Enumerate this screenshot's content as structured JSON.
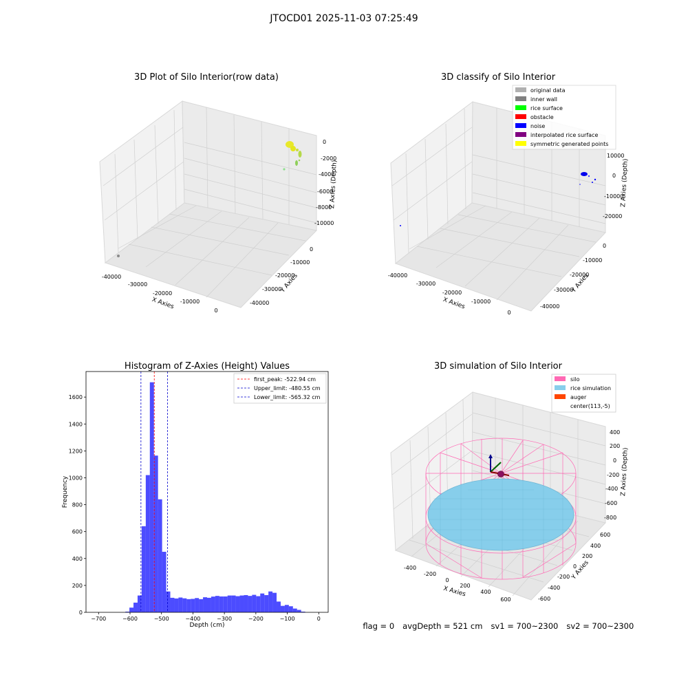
{
  "suptitle": "JTOCD01 2025-11-03 07:25:49",
  "panels": {
    "raw": {
      "title": "3D Plot of Silo Interior(row data)",
      "xlabel": "X Axies",
      "ylabel": "Y Axies",
      "zlabel": "Z Axies (Depth)",
      "xticks": [
        "-40000",
        "-30000",
        "-20000",
        "-10000",
        "0"
      ],
      "yticks": [
        "0",
        "-10000",
        "-20000",
        "-30000",
        "-40000"
      ],
      "zticks": [
        "0",
        "-2000",
        "-4000",
        "-6000",
        "-8000",
        "-10000"
      ]
    },
    "classify": {
      "title": "3D classify of Silo Interior",
      "xlabel": "X Axies",
      "ylabel": "Y Axies",
      "zlabel": "Z Axies (Depth)",
      "xticks": [
        "-40000",
        "-30000",
        "-20000",
        "-10000",
        "0"
      ],
      "yticks": [
        "0",
        "-10000",
        "-20000",
        "-30000",
        "-40000"
      ],
      "zticks": [
        "10000",
        "0",
        "-10000",
        "-20000"
      ],
      "legend": [
        {
          "label": "original data",
          "color": "#b0b0b0"
        },
        {
          "label": "inner wall",
          "color": "#808080"
        },
        {
          "label": "rice surface",
          "color": "#00ff00"
        },
        {
          "label": "obstacle",
          "color": "#ff0000"
        },
        {
          "label": "noise",
          "color": "#0000ff"
        },
        {
          "label": "interpolated rice surface",
          "color": "#800080"
        },
        {
          "label": "symmetric generated points",
          "color": "#ffff00"
        }
      ]
    },
    "simulation": {
      "title": "3D simulation of Silo Interior",
      "xlabel": "X Axies",
      "ylabel": "Y Axies",
      "zlabel": "Z Axies (Depth)",
      "xticks": [
        "-400",
        "-200",
        "0",
        "200",
        "400",
        "600"
      ],
      "yticks": [
        "600",
        "400",
        "200",
        "0",
        "-200",
        "-400",
        "-600"
      ],
      "zticks": [
        "400",
        "200",
        "0",
        "-200",
        "-400",
        "-600",
        "-800"
      ],
      "legend": [
        {
          "label": "silo",
          "color": "#ff69b4"
        },
        {
          "label": "rice simulation",
          "color": "#87ceeb"
        },
        {
          "label": "auger",
          "color": "#ff4500"
        },
        {
          "label": "center(113,-5)",
          "color": "#ffffff"
        }
      ]
    }
  },
  "chart_data": {
    "type": "bar",
    "title": "Histogram of Z-Axies (Height) Values",
    "xlabel": "Depth (cm)",
    "ylabel": "Frequency",
    "xlim": [
      -740,
      30
    ],
    "ylim": [
      0,
      1790
    ],
    "xticks": [
      -700,
      -600,
      -500,
      -400,
      -300,
      -200,
      -100,
      0
    ],
    "yticks": [
      0,
      200,
      400,
      600,
      800,
      1000,
      1200,
      1400,
      1600
    ],
    "bar_color": "#0000ff",
    "bar_alpha": 0.7,
    "bin_edges": [
      -615,
      -602,
      -589,
      -576,
      -563,
      -550,
      -537,
      -524,
      -511,
      -498,
      -485,
      -472,
      -459,
      -446,
      -433,
      -420,
      -407,
      -394,
      -381,
      -368,
      -355,
      -342,
      -329,
      -316,
      -303,
      -290,
      -277,
      -264,
      -251,
      -238,
      -225,
      -212,
      -199,
      -186,
      -173,
      -160,
      -147,
      -134,
      -121,
      -108,
      -95,
      -82,
      -69,
      -56,
      -43,
      -30,
      -17,
      -4
    ],
    "counts": [
      5,
      35,
      72,
      125,
      640,
      1020,
      1710,
      1165,
      840,
      450,
      155,
      108,
      103,
      110,
      104,
      98,
      100,
      106,
      98,
      112,
      108,
      117,
      122,
      118,
      118,
      125,
      125,
      120,
      125,
      128,
      122,
      130,
      120,
      140,
      128,
      155,
      145,
      80,
      48,
      55,
      45,
      28,
      18,
      5,
      0,
      0,
      0
    ],
    "lines": [
      {
        "label": "first_peak: -522.94 cm",
        "x": -522.94,
        "color": "#ff0000"
      },
      {
        "label": "Upper_limit: -480.55 cm",
        "x": -480.55,
        "color": "#0000cd"
      },
      {
        "label": "Lower_limit: -565.32 cm",
        "x": -565.32,
        "color": "#0000cd"
      }
    ],
    "legend_position": "top-right"
  },
  "info": {
    "flag": "flag = 0",
    "avg": "avgDepth = 521 cm",
    "sv1": "sv1 = 700~2300",
    "sv2": "sv2 = 700~2300"
  }
}
